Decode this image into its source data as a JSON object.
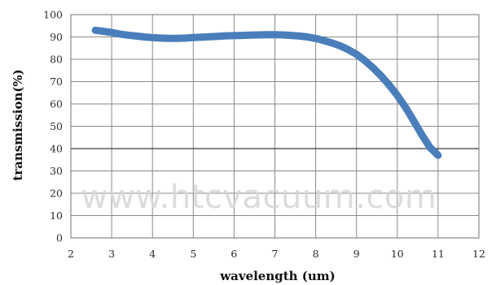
{
  "chart_data": {
    "type": "line",
    "title": "",
    "xlabel": "wavelength (um)",
    "ylabel": "transmission(%)",
    "xlim": [
      2,
      12
    ],
    "ylim": [
      0,
      100
    ],
    "x_ticks": [
      "2",
      "3",
      "4",
      "5",
      "6",
      "7",
      "8",
      "9",
      "10",
      "11",
      "12"
    ],
    "y_ticks": [
      "0",
      "10",
      "20",
      "30",
      "40",
      "50",
      "60",
      "70",
      "80",
      "90",
      "100"
    ],
    "grid": true,
    "legend": "none",
    "series": [
      {
        "color": "#4a7ebb",
        "x": [
          2.6,
          2.8,
          3.0,
          3.2,
          3.4,
          3.6,
          3.8,
          4.0,
          4.2,
          4.4,
          4.6,
          4.8,
          5.0,
          5.2,
          5.4,
          5.6,
          5.8,
          6.0,
          6.2,
          6.4,
          6.6,
          6.8,
          7.0,
          7.2,
          7.4,
          7.6,
          7.8,
          8.0,
          8.2,
          8.4,
          8.6,
          8.8,
          9.0,
          9.2,
          9.4,
          9.6,
          9.8,
          10.0,
          10.2,
          10.4,
          10.6,
          10.8,
          11.0
        ],
        "y": [
          93,
          92.5,
          92,
          91.3,
          90.8,
          90.4,
          90,
          89.7,
          89.5,
          89.4,
          89.4,
          89.5,
          89.7,
          89.9,
          90.1,
          90.3,
          90.5,
          90.6,
          90.7,
          90.8,
          90.9,
          91,
          91,
          90.9,
          90.7,
          90.4,
          90,
          89.3,
          88.4,
          87.3,
          86,
          84.3,
          82.2,
          79.5,
          76.3,
          72.6,
          68.5,
          63.8,
          58.5,
          52.5,
          46.2,
          40.5,
          37
        ]
      }
    ],
    "watermark": "www.htcvacuum.com"
  }
}
